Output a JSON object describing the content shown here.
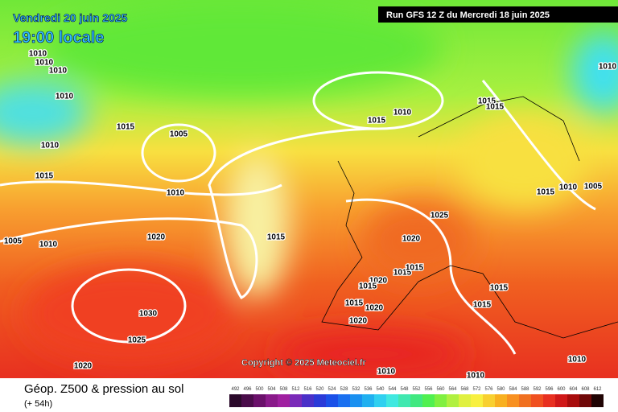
{
  "header": {
    "date": "Vendredi 20 juin 2025",
    "time": "19:00 locale",
    "run": "Run GFS 12 Z du Mercredi 18 juin 2025"
  },
  "map": {
    "copyright": "Copyright © 2025 Meteociel.fr",
    "isobar_labels": [
      "1010",
      "1010",
      "1010",
      "1010",
      "1015",
      "1010",
      "1005",
      "1015",
      "1010",
      "1020",
      "1005",
      "1010",
      "1015",
      "1030",
      "1025",
      "1020",
      "1010",
      "1015",
      "1015",
      "1015",
      "1015",
      "1010",
      "1005",
      "1025",
      "1020",
      "1015",
      "1015",
      "1020",
      "1015",
      "1015",
      "1020",
      "1020",
      "1015",
      "1015",
      "1010",
      "1010",
      "1010",
      "1010"
    ]
  },
  "legend": {
    "title": "Géop. Z500 & pression au sol",
    "subtitle": "(+ 54h)",
    "scale_labels": [
      "492",
      "496",
      "500",
      "504",
      "508",
      "512",
      "516",
      "520",
      "524",
      "528",
      "532",
      "536",
      "540",
      "544",
      "548",
      "552",
      "556",
      "560",
      "564",
      "568",
      "572",
      "576",
      "580",
      "584",
      "588",
      "592",
      "596",
      "600",
      "604",
      "608",
      "612"
    ],
    "scale_colors": [
      "#2b0a2b",
      "#4a0c4a",
      "#6a106a",
      "#8a1a8a",
      "#a020a0",
      "#7a2ab8",
      "#4a30c8",
      "#2a3ad8",
      "#1a50e8",
      "#1a70f0",
      "#1a90f0",
      "#20b0f0",
      "#30d0f0",
      "#40e8e0",
      "#40e8b0",
      "#40e880",
      "#50f050",
      "#80f040",
      "#b0f040",
      "#e0f040",
      "#f8f040",
      "#f8d030",
      "#f8b020",
      "#f89020",
      "#f07020",
      "#f05020",
      "#e83020",
      "#d01818",
      "#a80c0c",
      "#700808",
      "#200404"
    ]
  }
}
